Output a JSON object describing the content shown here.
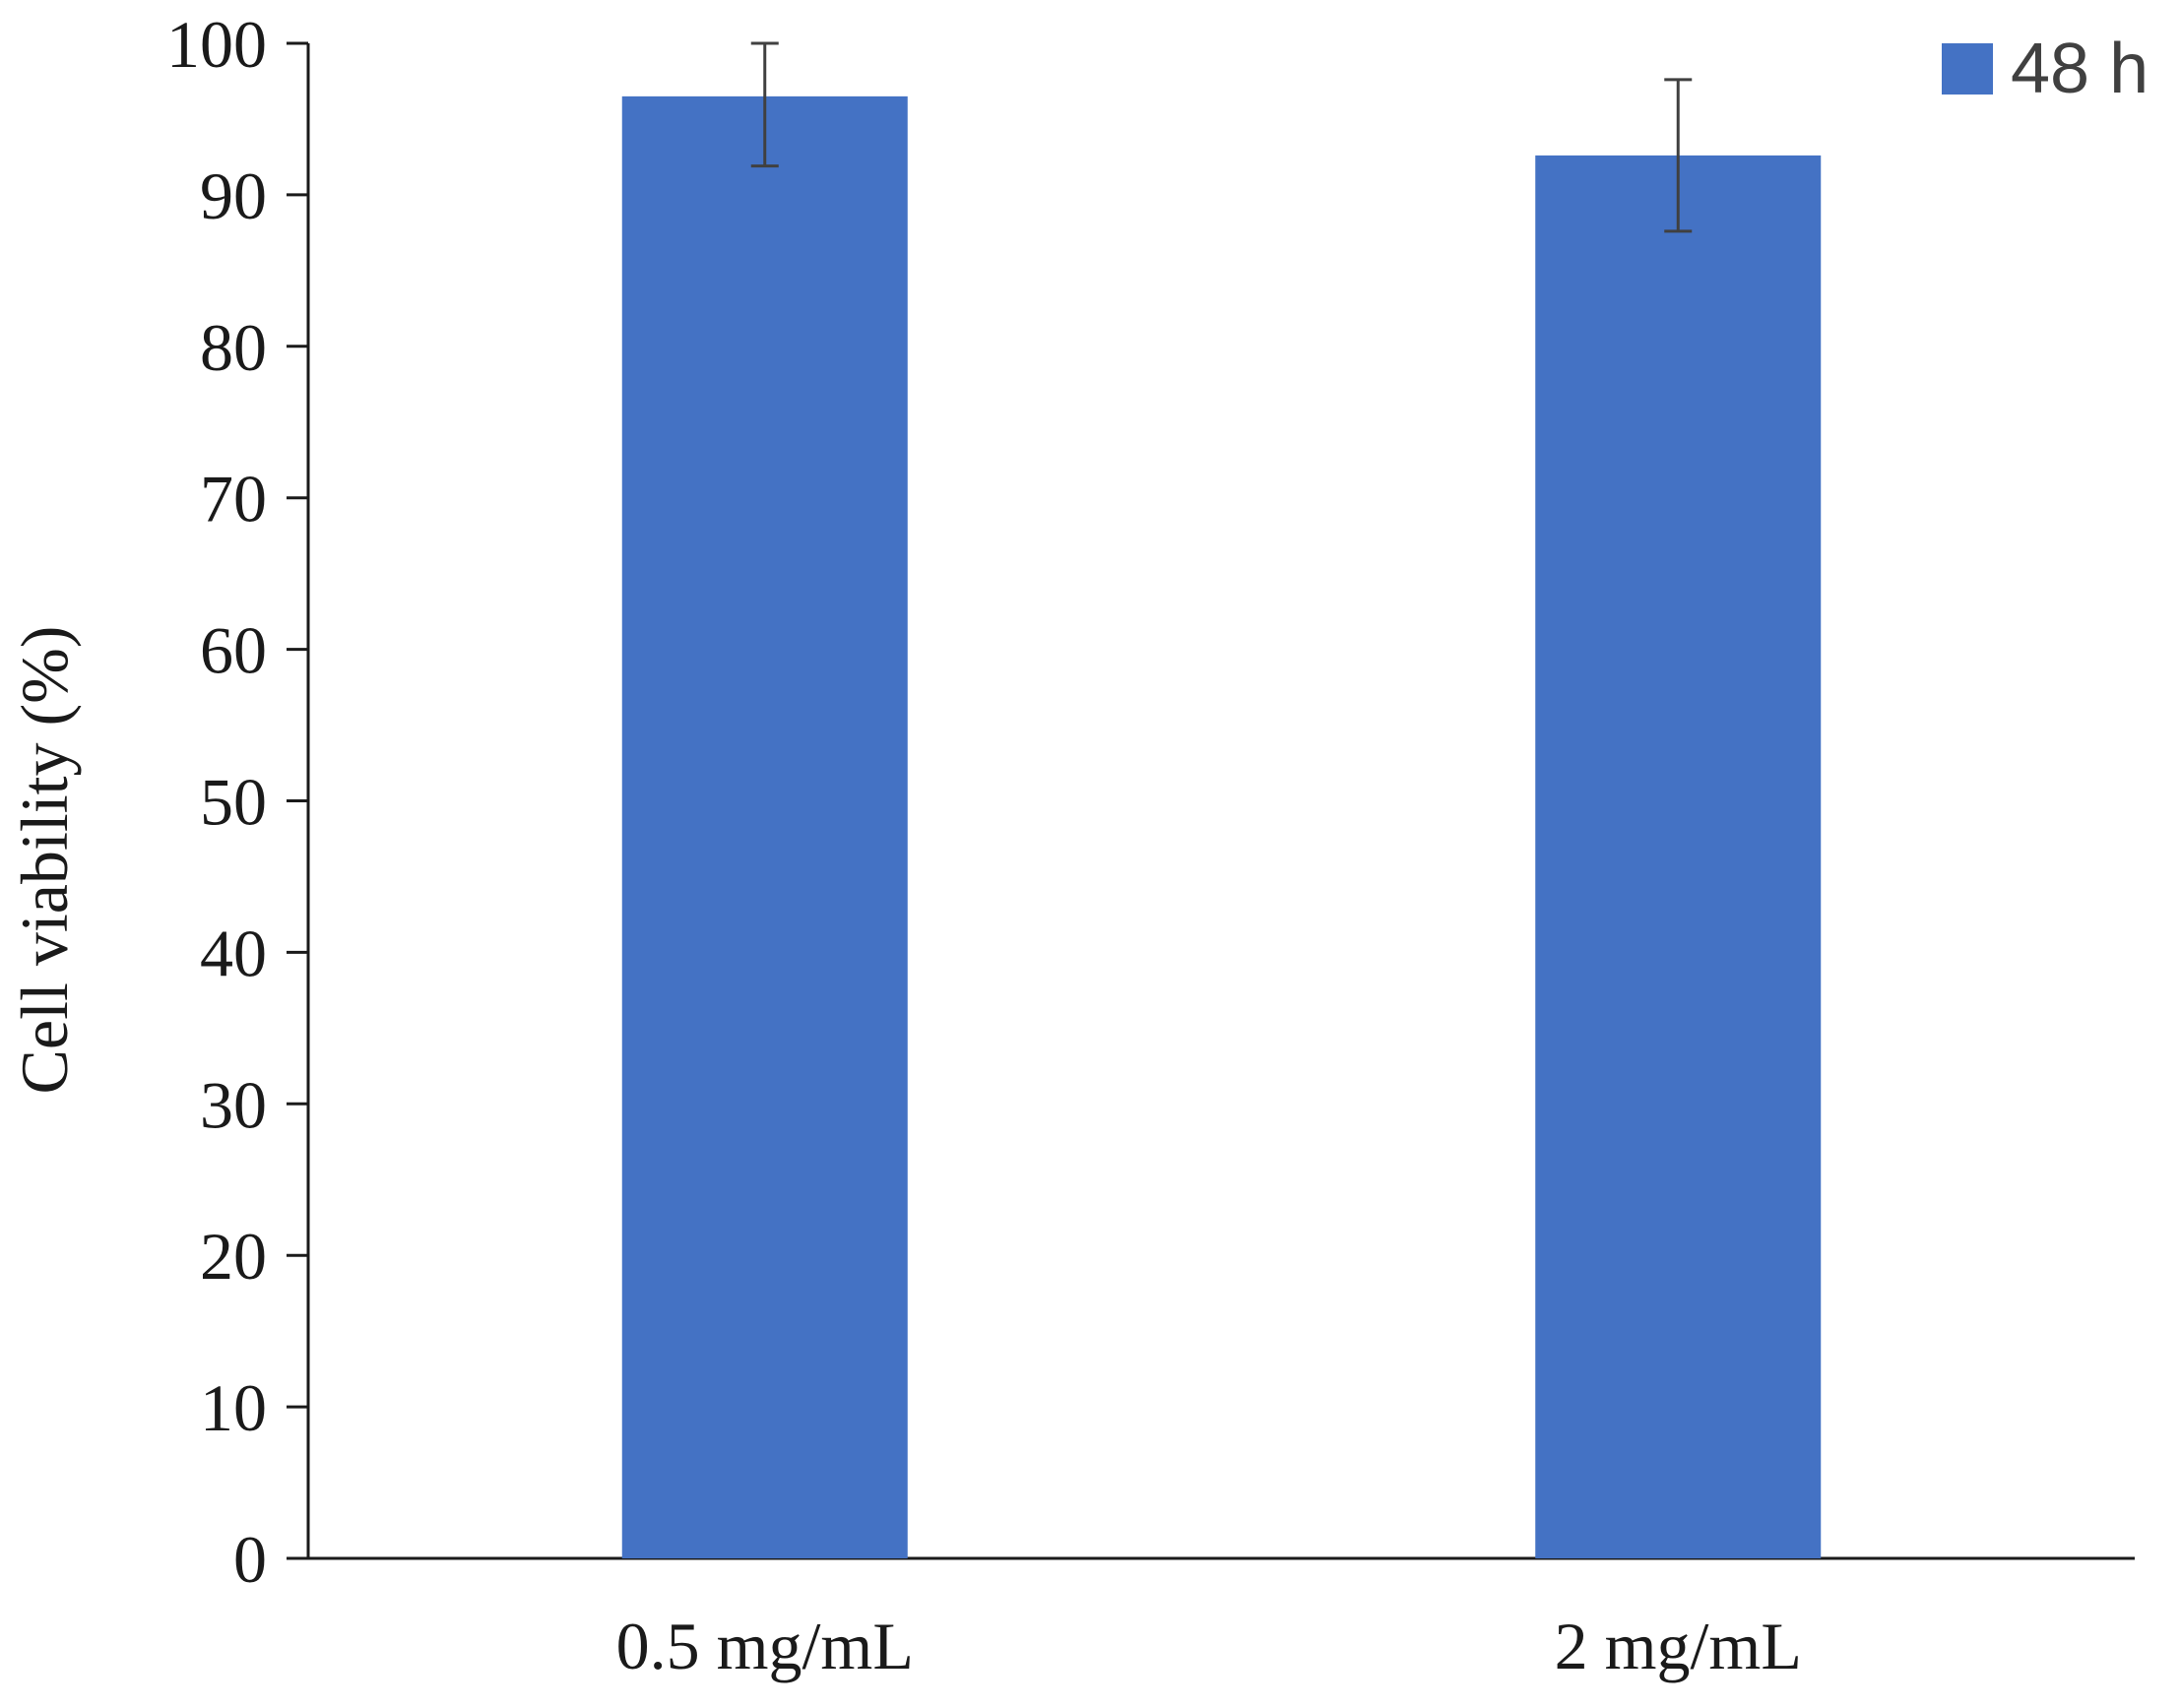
{
  "chart_data": {
    "type": "bar",
    "title": "",
    "xlabel": "",
    "ylabel": "Cell viability (%)",
    "categories": [
      "0.5 mg/mL",
      "2 mg/mL"
    ],
    "series": [
      {
        "name": "48 h",
        "values": [
          96.5,
          92.6
        ],
        "error": [
          4.6,
          5.0
        ],
        "color": "#4472C4"
      }
    ],
    "ylim": [
      0,
      100
    ],
    "yticks": [
      0,
      10,
      20,
      30,
      40,
      50,
      60,
      70,
      80,
      90,
      100
    ],
    "grid": false,
    "legend": "top-right",
    "axis_color": "#1a1a1a",
    "error_bar_color": "#404040"
  }
}
